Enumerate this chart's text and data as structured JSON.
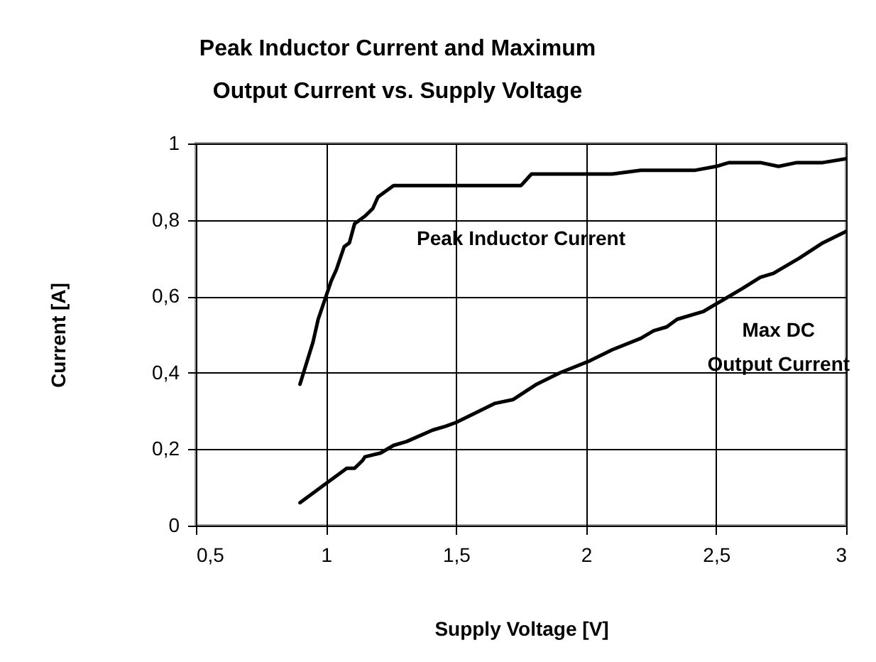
{
  "chart_data": {
    "type": "line",
    "title": "Peak Inductor Current and Maximum Output Current vs. Supply Voltage",
    "xlabel": "Supply Voltage [V]",
    "ylabel": "Current [A]",
    "xlim": [
      0.5,
      3
    ],
    "ylim": [
      0,
      1
    ],
    "xticks": [
      {
        "value": 0.5,
        "label": "0,5"
      },
      1,
      {
        "value": 1.5,
        "label": "1,5"
      },
      2,
      {
        "value": 2.5,
        "label": "2,5"
      },
      3
    ],
    "yticks": [
      0,
      {
        "value": 0.2,
        "label": "0,2"
      },
      {
        "value": 0.4,
        "label": "0,4"
      },
      {
        "value": 0.6,
        "label": "0,6"
      },
      {
        "value": 0.8,
        "label": "0,8"
      },
      1
    ],
    "grid": true,
    "legend": false,
    "marker": "none",
    "line_style": "solid",
    "series": [
      {
        "name": "Peak Inductor Current",
        "color": "#000000",
        "x": [
          0.9,
          0.95,
          0.97,
          1.0,
          1.02,
          1.04,
          1.07,
          1.09,
          1.11,
          1.15,
          1.18,
          1.2,
          1.26,
          1.75,
          1.79,
          2.1,
          2.21,
          2.42,
          2.5,
          2.55,
          2.67,
          2.74,
          2.81,
          2.91,
          3.0
        ],
        "values": [
          0.37,
          0.48,
          0.54,
          0.6,
          0.64,
          0.67,
          0.73,
          0.74,
          0.79,
          0.81,
          0.83,
          0.86,
          0.89,
          0.89,
          0.92,
          0.92,
          0.93,
          0.93,
          0.94,
          0.95,
          0.95,
          0.94,
          0.95,
          0.95,
          0.96
        ]
      },
      {
        "name": "Max DC Output Current",
        "color": "#000000",
        "x": [
          0.9,
          1.0,
          1.08,
          1.11,
          1.14,
          1.15,
          1.21,
          1.26,
          1.31,
          1.41,
          1.46,
          1.5,
          1.56,
          1.65,
          1.72,
          1.81,
          1.9,
          2.01,
          2.1,
          2.21,
          2.26,
          2.31,
          2.35,
          2.45,
          2.5,
          2.6,
          2.67,
          2.72,
          2.82,
          2.91,
          3.0
        ],
        "values": [
          0.06,
          0.11,
          0.15,
          0.15,
          0.17,
          0.18,
          0.19,
          0.21,
          0.22,
          0.25,
          0.26,
          0.27,
          0.29,
          0.32,
          0.33,
          0.37,
          0.4,
          0.43,
          0.46,
          0.49,
          0.51,
          0.52,
          0.54,
          0.56,
          0.58,
          0.62,
          0.65,
          0.66,
          0.7,
          0.74,
          0.77
        ]
      }
    ]
  }
}
